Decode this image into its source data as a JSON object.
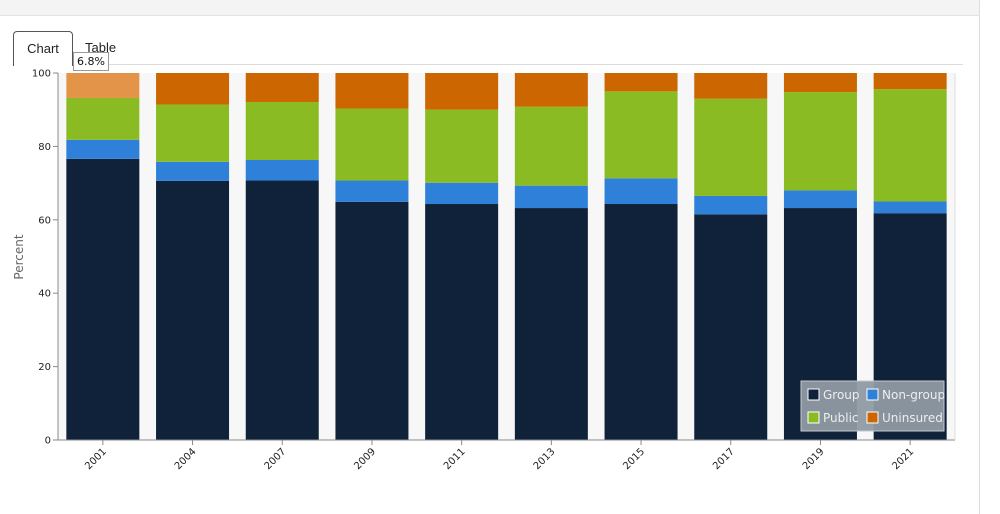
{
  "tabs": [
    {
      "label": "Chart"
    },
    {
      "label": "Table"
    }
  ],
  "tooltip": {
    "text": "6.8%"
  },
  "chart_data": {
    "type": "bar",
    "stacked": true,
    "title": "",
    "xlabel": "",
    "ylabel": "Percent",
    "ylim": [
      0,
      100
    ],
    "yticks": [
      0,
      20,
      40,
      60,
      80,
      100
    ],
    "categories": [
      "2001",
      "2004",
      "2007",
      "2009",
      "2011",
      "2013",
      "2015",
      "2017",
      "2019",
      "2021"
    ],
    "series": [
      {
        "name": "Group",
        "color": "#0f2239",
        "values": [
          76.6,
          70.6,
          70.7,
          64.9,
          64.3,
          63.2,
          64.3,
          61.5,
          63.2,
          61.8
        ]
      },
      {
        "name": "Non-group",
        "color": "#2e80d9",
        "values": [
          5.2,
          5.2,
          5.6,
          5.8,
          5.8,
          6.1,
          7.0,
          5.0,
          4.8,
          3.2
        ]
      },
      {
        "name": "Public",
        "color": "#8bbb23",
        "values": [
          11.4,
          15.6,
          15.8,
          19.6,
          19.9,
          21.5,
          23.7,
          26.5,
          26.8,
          30.6
        ]
      },
      {
        "name": "Uninsured",
        "color": "#cc6600",
        "values": [
          6.8,
          8.6,
          7.9,
          9.7,
          10.0,
          9.2,
          5.0,
          7.0,
          5.2,
          4.4
        ]
      }
    ],
    "highlight": {
      "category": "2001",
      "series": "Uninsured",
      "color": "#e49448"
    },
    "legend": {
      "position": "bottom-right",
      "background": "#8f9aa2"
    },
    "grid": false
  }
}
